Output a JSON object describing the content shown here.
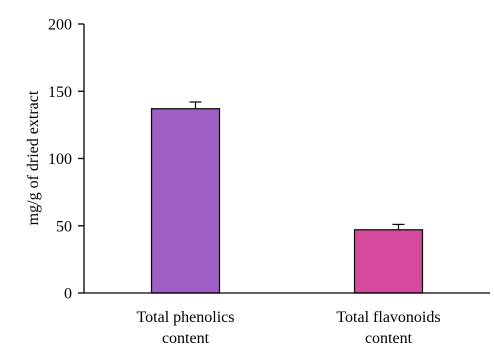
{
  "chart_data": {
    "type": "bar",
    "categories": [
      [
        "Total phenolics",
        "content"
      ],
      [
        "Total flavonoids",
        "content"
      ]
    ],
    "values": [
      137,
      47
    ],
    "errors": [
      5,
      4
    ],
    "colors": [
      "#a05ec7",
      "#d64a9e"
    ],
    "ylabel": "mg/g of dried extract",
    "ylim": [
      0,
      200
    ],
    "yticks": [
      0,
      50,
      100,
      150,
      200
    ],
    "grid": false
  }
}
